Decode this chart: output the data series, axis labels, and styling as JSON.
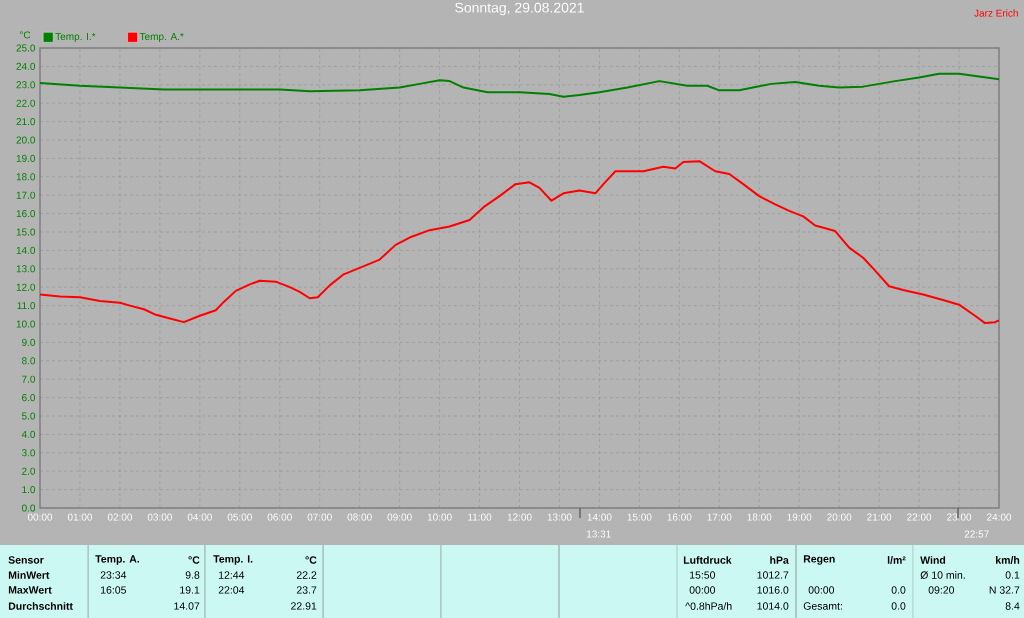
{
  "chart_data": {
    "type": "line",
    "title": "Sonntag, 29.08.2021",
    "ylabel": "°C",
    "xlim": [
      0,
      24
    ],
    "ylim": [
      0,
      25
    ],
    "xticks": [
      {
        "value": 0,
        "label": "00:00"
      },
      {
        "value": 1,
        "label": "01:00"
      },
      {
        "value": 2,
        "label": "02:00"
      },
      {
        "value": 3,
        "label": "03:00"
      },
      {
        "value": 4,
        "label": "04:00"
      },
      {
        "value": 5,
        "label": "05:00"
      },
      {
        "value": 6,
        "label": "06:00"
      },
      {
        "value": 7,
        "label": "07:00"
      },
      {
        "value": 8,
        "label": "08:00"
      },
      {
        "value": 9,
        "label": "09:00"
      },
      {
        "value": 10,
        "label": "10:00"
      },
      {
        "value": 11,
        "label": "11:00"
      },
      {
        "value": 12,
        "label": "12:00"
      },
      {
        "value": 13,
        "label": "13:00"
      },
      {
        "value": 14,
        "label": "14:00"
      },
      {
        "value": 15,
        "label": "15:00"
      },
      {
        "value": 16,
        "label": "16:00"
      },
      {
        "value": 17,
        "label": "17:00"
      },
      {
        "value": 18,
        "label": "18:00"
      },
      {
        "value": 19,
        "label": "19:00"
      },
      {
        "value": 20,
        "label": "20:00"
      },
      {
        "value": 21,
        "label": "21:00"
      },
      {
        "value": 22,
        "label": "22:00"
      },
      {
        "value": 23,
        "label": "23:00"
      },
      {
        "value": 24,
        "label": "24:00"
      }
    ],
    "yticks": [
      {
        "value": 0,
        "label": "0.0"
      },
      {
        "value": 1,
        "label": "1.0"
      },
      {
        "value": 2,
        "label": "2.0"
      },
      {
        "value": 3,
        "label": "3.0"
      },
      {
        "value": 4,
        "label": "4.0"
      },
      {
        "value": 5,
        "label": "5.0"
      },
      {
        "value": 6,
        "label": "6.0"
      },
      {
        "value": 7,
        "label": "7.0"
      },
      {
        "value": 8,
        "label": "8.0"
      },
      {
        "value": 9,
        "label": "9.0"
      },
      {
        "value": 10,
        "label": "10.0"
      },
      {
        "value": 11,
        "label": "11.0"
      },
      {
        "value": 12,
        "label": "12.0"
      },
      {
        "value": 13,
        "label": "13.0"
      },
      {
        "value": 14,
        "label": "14.0"
      },
      {
        "value": 15,
        "label": "15.0"
      },
      {
        "value": 16,
        "label": "16.0"
      },
      {
        "value": 17,
        "label": "17.0"
      },
      {
        "value": 18,
        "label": "18.0"
      },
      {
        "value": 19,
        "label": "19.0"
      },
      {
        "value": 20,
        "label": "20.0"
      },
      {
        "value": 21,
        "label": "21.0"
      },
      {
        "value": 22,
        "label": "22.0"
      },
      {
        "value": 23,
        "label": "23.0"
      },
      {
        "value": 24,
        "label": "24.0"
      },
      {
        "value": 25,
        "label": "25.0"
      }
    ],
    "grid": true,
    "legend": "top left",
    "marker": "none",
    "line_style": "solid",
    "series": [
      {
        "name": "Temp. I.*",
        "color": "#008000",
        "x": [
          0,
          1,
          2,
          3.1,
          6,
          6.75,
          8,
          9,
          9.5,
          10,
          10.25,
          10.6,
          11.2,
          12,
          12.75,
          13.1,
          13.5,
          14,
          14.7,
          15.5,
          16.2,
          16.7,
          17,
          17.5,
          18.3,
          18.9,
          19.5,
          20,
          20.6,
          21.4,
          22,
          22.5,
          23,
          23.5,
          24
        ],
        "values": [
          23.1,
          22.95,
          22.85,
          22.75,
          22.75,
          22.65,
          22.7,
          22.85,
          23.05,
          23.25,
          23.2,
          22.85,
          22.6,
          22.6,
          22.5,
          22.35,
          22.45,
          22.6,
          22.85,
          23.2,
          22.95,
          22.95,
          22.7,
          22.7,
          23.05,
          23.15,
          22.95,
          22.85,
          22.9,
          23.2,
          23.4,
          23.6,
          23.6,
          23.45,
          23.3
        ]
      },
      {
        "name": "Temp. A.*",
        "color": "#ff0000",
        "x": [
          0,
          0.5,
          1,
          1.5,
          2,
          2.25,
          2.6,
          2.9,
          3.25,
          3.6,
          4,
          4.4,
          4.6,
          4.9,
          5.25,
          5.5,
          5.9,
          6.25,
          6.5,
          6.75,
          6.95,
          7.25,
          7.6,
          8,
          8.5,
          8.9,
          9.25,
          9.75,
          10.25,
          10.75,
          11.1,
          11.5,
          11.9,
          12.25,
          12.5,
          12.8,
          13.1,
          13.5,
          13.9,
          14.1,
          14.4,
          14.6,
          15.1,
          15.6,
          15.9,
          16.1,
          16.5,
          16.9,
          17.25,
          17.6,
          18,
          18.4,
          18.75,
          19.1,
          19.4,
          19.9,
          20.25,
          20.6,
          20.9,
          21.25,
          21.6,
          22.1,
          22.6,
          23,
          23.4,
          23.65,
          23.9,
          24
        ],
        "values": [
          11.6,
          11.5,
          11.45,
          11.25,
          11.15,
          11.0,
          10.8,
          10.5,
          10.3,
          10.1,
          10.45,
          10.75,
          11.2,
          11.8,
          12.15,
          12.35,
          12.3,
          12.0,
          11.75,
          11.4,
          11.45,
          12.1,
          12.7,
          13.05,
          13.5,
          14.3,
          14.7,
          15.1,
          15.3,
          15.65,
          16.35,
          16.95,
          17.6,
          17.7,
          17.4,
          16.7,
          17.1,
          17.25,
          17.1,
          17.6,
          18.3,
          18.3,
          18.3,
          18.55,
          18.45,
          18.8,
          18.85,
          18.3,
          18.15,
          17.6,
          16.95,
          16.5,
          16.15,
          15.85,
          15.35,
          15.05,
          14.15,
          13.6,
          12.9,
          12.05,
          11.85,
          11.6,
          11.3,
          11.05,
          10.45,
          10.05,
          10.1,
          10.2
        ]
      }
    ],
    "annotations": [
      "Jarz Erich",
      "13:31",
      "22:57",
      "Sensor",
      "MinWert",
      "MaxWert",
      "Durchschnitt",
      "Temp. A.",
      "°C",
      "23:34",
      "9.8",
      "16:05",
      "19.1",
      "14.07",
      "Temp. I.",
      "°C",
      "12:44",
      "22.2",
      "22:04",
      "23.7",
      "22.91",
      "Luftdruck",
      "hPa",
      "15:50",
      "1012.7",
      "00:00",
      "1016.0",
      "^0.8hPa/h",
      "1014.0",
      "Regen",
      "l/m²",
      "00:00",
      "0.0",
      "Gesamt:",
      "0.0",
      "Wind",
      "km/h",
      "Ø 10 min.",
      "0.1",
      "09:20",
      "N 32.7",
      "8.4"
    ]
  }
}
